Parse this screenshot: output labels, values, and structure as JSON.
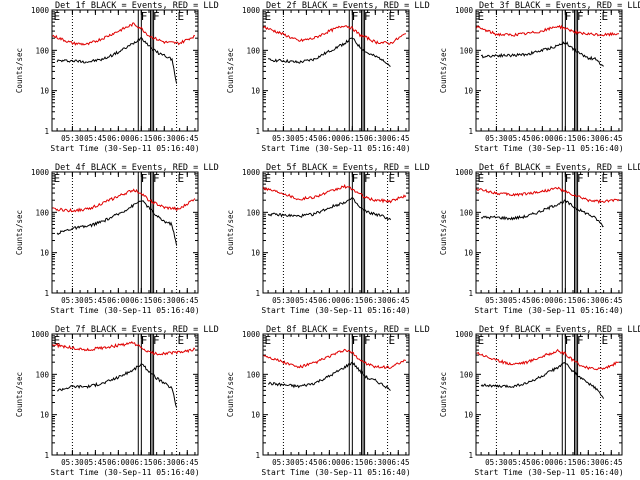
{
  "chart_data": [
    {
      "type": "line",
      "title": "Det 1f BLACK = Events, RED = LLD",
      "xlabel": "Start Time (30-Sep-11 05:16:40)",
      "ylabel": "Counts/sec",
      "yscale": "log",
      "ylim": [
        1,
        1000
      ],
      "x_ticks": [
        "05:30",
        "05:45",
        "06:00",
        "06:15",
        "06:30",
        "06:45"
      ],
      "y_ticks": [
        "1",
        "10",
        "100",
        "1000"
      ],
      "flag_labels": [
        "E",
        "F",
        "F",
        "E"
      ],
      "flag_times": [
        "05:17",
        "06:14",
        "06:22",
        "06:38"
      ],
      "solid_lines": [
        "06:13",
        "06:15",
        "06:21",
        "06:22",
        "06:23"
      ],
      "dotted_lines": [
        "05:30",
        "06:38"
      ],
      "series": [
        {
          "color": "#000000",
          "x": [
            "05:20",
            "05:30",
            "05:40",
            "05:50",
            "06:00",
            "06:10",
            "06:15",
            "06:20",
            "06:25",
            "06:30",
            "06:35",
            "06:38"
          ],
          "values": [
            55,
            55,
            52,
            60,
            90,
            150,
            210,
            130,
            90,
            75,
            60,
            15
          ]
        },
        {
          "color": "#e00000",
          "x": [
            "05:17",
            "05:30",
            "05:40",
            "05:50",
            "06:00",
            "06:10",
            "06:15",
            "06:20",
            "06:25",
            "06:30",
            "06:40",
            "06:50"
          ],
          "values": [
            230,
            150,
            140,
            200,
            300,
            450,
            350,
            230,
            190,
            160,
            150,
            230
          ]
        }
      ]
    },
    {
      "type": "line",
      "title": "Det 2f BLACK = Events, RED = LLD",
      "xlabel": "Start Time (30-Sep-11 05:16:40)",
      "ylabel": "Counts/sec",
      "yscale": "log",
      "ylim": [
        1,
        1000
      ],
      "x_ticks": [
        "05:30",
        "05:45",
        "06:00",
        "06:15",
        "06:30",
        "06:45"
      ],
      "y_ticks": [
        "1",
        "10",
        "100",
        "1000"
      ],
      "flag_labels": [
        "E",
        "F",
        "F",
        "E"
      ],
      "flag_times": [
        "05:17",
        "06:14",
        "06:22",
        "06:38"
      ],
      "solid_lines": [
        "06:13",
        "06:15",
        "06:21",
        "06:22",
        "06:23"
      ],
      "dotted_lines": [
        "05:30",
        "06:38"
      ],
      "series": [
        {
          "color": "#000000",
          "x": [
            "05:20",
            "05:30",
            "05:40",
            "05:50",
            "06:00",
            "06:10",
            "06:15",
            "06:20",
            "06:25",
            "06:30",
            "06:35",
            "06:40"
          ],
          "values": [
            58,
            55,
            50,
            60,
            95,
            150,
            200,
            120,
            85,
            70,
            60,
            40
          ]
        },
        {
          "color": "#e00000",
          "x": [
            "05:17",
            "05:30",
            "05:40",
            "05:50",
            "06:00",
            "06:10",
            "06:15",
            "06:20",
            "06:25",
            "06:30",
            "06:40",
            "06:50"
          ],
          "values": [
            380,
            250,
            170,
            200,
            300,
            420,
            350,
            240,
            200,
            160,
            150,
            260
          ]
        }
      ]
    },
    {
      "type": "line",
      "title": "Det 3f BLACK = Events, RED = LLD",
      "xlabel": "Start Time (30-Sep-11 05:16:40)",
      "ylabel": "Counts/sec",
      "yscale": "log",
      "ylim": [
        1,
        1000
      ],
      "x_ticks": [
        "05:30",
        "05:45",
        "06:00",
        "06:15",
        "06:30",
        "06:45"
      ],
      "y_ticks": [
        "1",
        "10",
        "100",
        "1000"
      ],
      "flag_labels": [
        "E",
        "F",
        "F",
        "E"
      ],
      "flag_times": [
        "05:17",
        "06:14",
        "06:22",
        "06:38"
      ],
      "solid_lines": [
        "06:13",
        "06:15",
        "06:21",
        "06:22",
        "06:23"
      ],
      "dotted_lines": [
        "05:30",
        "06:38"
      ],
      "series": [
        {
          "color": "#000000",
          "x": [
            "05:20",
            "05:30",
            "05:40",
            "05:50",
            "06:00",
            "06:10",
            "06:15",
            "06:20",
            "06:25",
            "06:30",
            "06:35",
            "06:40"
          ],
          "values": [
            70,
            75,
            75,
            80,
            100,
            130,
            160,
            110,
            80,
            65,
            60,
            40
          ]
        },
        {
          "color": "#e00000",
          "x": [
            "05:17",
            "05:30",
            "05:40",
            "05:50",
            "06:00",
            "06:10",
            "06:15",
            "06:20",
            "06:25",
            "06:30",
            "06:40",
            "06:50"
          ],
          "values": [
            380,
            250,
            240,
            260,
            300,
            400,
            350,
            300,
            260,
            250,
            240,
            260
          ]
        }
      ]
    },
    {
      "type": "line",
      "title": "Det 4f BLACK = Events, RED = LLD",
      "xlabel": "Start Time (30-Sep-11 05:16:40)",
      "ylabel": "Counts/sec",
      "yscale": "log",
      "ylim": [
        1,
        1000
      ],
      "x_ticks": [
        "05:30",
        "05:45",
        "06:00",
        "06:15",
        "06:30",
        "06:45"
      ],
      "y_ticks": [
        "1",
        "10",
        "100",
        "1000"
      ],
      "flag_labels": [
        "E",
        "F",
        "F",
        "E"
      ],
      "flag_times": [
        "05:17",
        "06:14",
        "06:22",
        "06:38"
      ],
      "solid_lines": [
        "06:13",
        "06:15",
        "06:21",
        "06:22",
        "06:23"
      ],
      "dotted_lines": [
        "05:30",
        "06:38"
      ],
      "series": [
        {
          "color": "#000000",
          "x": [
            "05:20",
            "05:30",
            "05:40",
            "05:50",
            "06:00",
            "06:10",
            "06:15",
            "06:20",
            "06:25",
            "06:30",
            "06:35",
            "06:38"
          ],
          "values": [
            30,
            40,
            45,
            60,
            90,
            150,
            200,
            130,
            80,
            60,
            50,
            15
          ]
        },
        {
          "color": "#e00000",
          "x": [
            "05:17",
            "05:30",
            "05:40",
            "05:50",
            "06:00",
            "06:10",
            "06:15",
            "06:20",
            "06:25",
            "06:30",
            "06:40",
            "06:50"
          ],
          "values": [
            120,
            110,
            120,
            170,
            250,
            360,
            300,
            200,
            160,
            130,
            120,
            220
          ]
        }
      ]
    },
    {
      "type": "line",
      "title": "Det 5f BLACK = Events, RED = LLD",
      "xlabel": "Start Time (30-Sep-11 05:16:40)",
      "ylabel": "Counts/sec",
      "yscale": "log",
      "ylim": [
        1,
        1000
      ],
      "x_ticks": [
        "05:30",
        "05:45",
        "06:00",
        "06:15",
        "06:30",
        "06:45"
      ],
      "y_ticks": [
        "1",
        "10",
        "100",
        "1000"
      ],
      "flag_labels": [
        "E",
        "F",
        "F",
        "E"
      ],
      "flag_times": [
        "05:17",
        "06:14",
        "06:22",
        "06:38"
      ],
      "solid_lines": [
        "06:13",
        "06:15",
        "06:21",
        "06:22",
        "06:23"
      ],
      "dotted_lines": [
        "05:30",
        "06:38"
      ],
      "series": [
        {
          "color": "#000000",
          "x": [
            "05:20",
            "05:30",
            "05:40",
            "05:50",
            "06:00",
            "06:10",
            "06:15",
            "06:20",
            "06:25",
            "06:30",
            "06:35",
            "06:40"
          ],
          "values": [
            90,
            85,
            80,
            90,
            130,
            180,
            220,
            130,
            100,
            90,
            80,
            65
          ]
        },
        {
          "color": "#e00000",
          "x": [
            "05:17",
            "05:30",
            "05:40",
            "05:50",
            "06:00",
            "06:10",
            "06:15",
            "06:20",
            "06:25",
            "06:30",
            "06:40",
            "06:50"
          ],
          "values": [
            400,
            300,
            210,
            240,
            320,
            440,
            380,
            280,
            220,
            200,
            190,
            260
          ]
        }
      ]
    },
    {
      "type": "line",
      "title": "Det 6f BLACK = Events, RED = LLD",
      "xlabel": "Start Time (30-Sep-11 05:16:40)",
      "ylabel": "Counts/sec",
      "yscale": "log",
      "ylim": [
        1,
        1000
      ],
      "x_ticks": [
        "05:30",
        "05:45",
        "06:00",
        "06:15",
        "06:30",
        "06:45"
      ],
      "y_ticks": [
        "1",
        "10",
        "100",
        "1000"
      ],
      "flag_labels": [
        "E",
        "F",
        "F",
        "E"
      ],
      "flag_times": [
        "05:17",
        "06:14",
        "06:22",
        "06:38"
      ],
      "solid_lines": [
        "06:13",
        "06:15",
        "06:21",
        "06:22",
        "06:23"
      ],
      "dotted_lines": [
        "05:30",
        "06:38"
      ],
      "series": [
        {
          "color": "#000000",
          "x": [
            "05:20",
            "05:30",
            "05:40",
            "05:50",
            "06:00",
            "06:10",
            "06:15",
            "06:20",
            "06:25",
            "06:30",
            "06:35",
            "06:40"
          ],
          "values": [
            75,
            75,
            70,
            80,
            110,
            160,
            190,
            140,
            110,
            90,
            70,
            45
          ]
        },
        {
          "color": "#e00000",
          "x": [
            "05:17",
            "05:30",
            "05:40",
            "05:50",
            "06:00",
            "06:10",
            "06:15",
            "06:20",
            "06:25",
            "06:30",
            "06:40",
            "06:50"
          ],
          "values": [
            380,
            300,
            270,
            290,
            330,
            400,
            320,
            270,
            230,
            200,
            180,
            210
          ]
        }
      ]
    },
    {
      "type": "line",
      "title": "Det 7f BLACK = Events, RED = LLD",
      "xlabel": "Start Time (30-Sep-11 05:16:40)",
      "ylabel": "Counts/sec",
      "yscale": "log",
      "ylim": [
        1,
        1000
      ],
      "x_ticks": [
        "05:30",
        "05:45",
        "06:00",
        "06:15",
        "06:30",
        "06:45"
      ],
      "y_ticks": [
        "1",
        "10",
        "100",
        "1000"
      ],
      "flag_labels": [
        "E",
        "F",
        "F",
        "E"
      ],
      "flag_times": [
        "05:17",
        "06:14",
        "06:22",
        "06:38"
      ],
      "solid_lines": [
        "06:13",
        "06:15",
        "06:21",
        "06:22",
        "06:23"
      ],
      "dotted_lines": [
        "05:30",
        "06:38"
      ],
      "series": [
        {
          "color": "#000000",
          "x": [
            "05:20",
            "05:30",
            "05:40",
            "05:50",
            "06:00",
            "06:10",
            "06:15",
            "06:20",
            "06:25",
            "06:30",
            "06:35",
            "06:38"
          ],
          "values": [
            40,
            50,
            50,
            60,
            85,
            130,
            180,
            120,
            80,
            60,
            45,
            15
          ]
        },
        {
          "color": "#e00000",
          "x": [
            "05:17",
            "05:30",
            "05:40",
            "05:50",
            "06:00",
            "06:10",
            "06:15",
            "06:20",
            "06:25",
            "06:30",
            "06:40",
            "06:50"
          ],
          "values": [
            550,
            450,
            400,
            460,
            520,
            600,
            450,
            350,
            320,
            330,
            350,
            420
          ]
        }
      ]
    },
    {
      "type": "line",
      "title": "Det 8f BLACK = Events, RED = LLD",
      "xlabel": "Start Time (30-Sep-11 05:16:40)",
      "ylabel": "Counts/sec",
      "yscale": "log",
      "ylim": [
        1,
        1000
      ],
      "x_ticks": [
        "05:30",
        "05:45",
        "06:00",
        "06:15",
        "06:30",
        "06:45"
      ],
      "y_ticks": [
        "1",
        "10",
        "100",
        "1000"
      ],
      "flag_labels": [
        "E",
        "F",
        "F",
        "E"
      ],
      "flag_times": [
        "05:17",
        "06:14",
        "06:22",
        "06:38"
      ],
      "solid_lines": [
        "06:13",
        "06:15",
        "06:21",
        "06:22",
        "06:23"
      ],
      "dotted_lines": [
        "05:30",
        "06:38"
      ],
      "series": [
        {
          "color": "#000000",
          "x": [
            "05:20",
            "05:30",
            "05:40",
            "05:50",
            "06:00",
            "06:10",
            "06:15",
            "06:20",
            "06:25",
            "06:30",
            "06:35",
            "06:40"
          ],
          "values": [
            60,
            55,
            50,
            60,
            90,
            150,
            200,
            120,
            80,
            70,
            55,
            40
          ]
        },
        {
          "color": "#e00000",
          "x": [
            "05:17",
            "05:30",
            "05:40",
            "05:50",
            "06:00",
            "06:10",
            "06:15",
            "06:20",
            "06:25",
            "06:30",
            "06:40",
            "06:50"
          ],
          "values": [
            300,
            200,
            150,
            190,
            280,
            400,
            340,
            230,
            180,
            150,
            150,
            220
          ]
        }
      ]
    },
    {
      "type": "line",
      "title": "Det 9f BLACK = Events, RED = LLD",
      "xlabel": "Start Time (30-Sep-11 05:16:40)",
      "ylabel": "Counts/sec",
      "yscale": "log",
      "ylim": [
        1,
        1000
      ],
      "x_ticks": [
        "05:30",
        "05:45",
        "06:00",
        "06:15",
        "06:30",
        "06:45"
      ],
      "y_ticks": [
        "1",
        "10",
        "100",
        "1000"
      ],
      "flag_labels": [
        "E",
        "F",
        "F",
        "E"
      ],
      "flag_times": [
        "05:17",
        "06:14",
        "06:22",
        "06:38"
      ],
      "solid_lines": [
        "06:13",
        "06:15",
        "06:21",
        "06:22",
        "06:23"
      ],
      "dotted_lines": [
        "05:30",
        "06:38"
      ],
      "series": [
        {
          "color": "#000000",
          "x": [
            "05:20",
            "05:30",
            "05:40",
            "05:50",
            "06:00",
            "06:10",
            "06:15",
            "06:20",
            "06:25",
            "06:30",
            "06:35",
            "06:40"
          ],
          "values": [
            55,
            50,
            50,
            60,
            90,
            150,
            190,
            120,
            80,
            60,
            45,
            25
          ]
        },
        {
          "color": "#e00000",
          "x": [
            "05:17",
            "05:30",
            "05:40",
            "05:50",
            "06:00",
            "06:10",
            "06:15",
            "06:20",
            "06:25",
            "06:30",
            "06:40",
            "06:50"
          ],
          "values": [
            350,
            220,
            180,
            200,
            280,
            380,
            320,
            220,
            170,
            140,
            140,
            200
          ]
        }
      ]
    }
  ]
}
